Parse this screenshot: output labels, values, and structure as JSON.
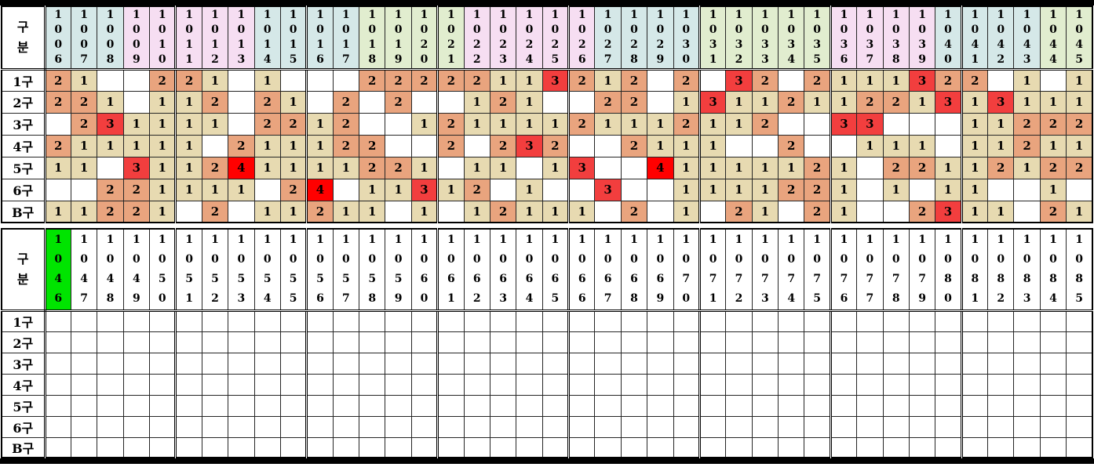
{
  "colors": {
    "header_cyan": "#d5e8e8",
    "header_pink": "#f6def2",
    "header_green": "#e1edcf",
    "header_bright_green": "#00e400",
    "header_white": "#ffffff",
    "value_1_bg": "#e7dab1",
    "value_2_bg": "#e9a47e",
    "value_3_bg": "#f23e3e",
    "value_4_bg": "#ff0000",
    "blank_bg": "#ffffff",
    "grid_line": "#262626"
  },
  "upper_table": {
    "corner_label": "구분",
    "corner_label_lines": [
      "구",
      "분"
    ],
    "row_labels": [
      "1구",
      "2구",
      "3구",
      "4구",
      "5구",
      "6구",
      "B구"
    ],
    "column_ids": [
      "1006",
      "1007",
      "1008",
      "1009",
      "1010",
      "1011",
      "1012",
      "1013",
      "1014",
      "1015",
      "1016",
      "1017",
      "1018",
      "1019",
      "1020",
      "1021",
      "1022",
      "1023",
      "1024",
      "1025",
      "1026",
      "1027",
      "1028",
      "1029",
      "1030",
      "1031",
      "1032",
      "1033",
      "1034",
      "1035",
      "1036",
      "1037",
      "1038",
      "1039",
      "1040",
      "1041",
      "1042",
      "1043",
      "1044",
      "1045"
    ],
    "column_color_keys": [
      "cyan",
      "cyan",
      "cyan",
      "pink",
      "pink",
      "pink",
      "pink",
      "pink",
      "cyan",
      "cyan",
      "cyan",
      "cyan",
      "green",
      "green",
      "green",
      "green",
      "pink",
      "pink",
      "pink",
      "pink",
      "pink",
      "cyan",
      "cyan",
      "cyan",
      "cyan",
      "green",
      "green",
      "green",
      "green",
      "green",
      "pink",
      "pink",
      "pink",
      "pink",
      "cyan",
      "cyan",
      "cyan",
      "cyan",
      "green",
      "green"
    ],
    "cell_values": [
      [
        2,
        1,
        null,
        null,
        2,
        2,
        1,
        null,
        1,
        null,
        null,
        null,
        2,
        2,
        2,
        2,
        2,
        1,
        1,
        3,
        2,
        1,
        2,
        null,
        2,
        null,
        3,
        2,
        null,
        2,
        1,
        1,
        1,
        3,
        2,
        2,
        null,
        1,
        null,
        1
      ],
      [
        2,
        2,
        1,
        null,
        1,
        1,
        2,
        null,
        2,
        1,
        null,
        2,
        null,
        2,
        null,
        null,
        1,
        2,
        1,
        null,
        null,
        2,
        2,
        null,
        1,
        3,
        1,
        1,
        2,
        1,
        1,
        2,
        2,
        1,
        3,
        1,
        3,
        1,
        1,
        1
      ],
      [
        null,
        2,
        3,
        1,
        1,
        1,
        1,
        null,
        2,
        2,
        1,
        2,
        null,
        null,
        1,
        2,
        1,
        1,
        1,
        1,
        2,
        1,
        1,
        1,
        2,
        1,
        1,
        2,
        null,
        null,
        3,
        3,
        null,
        null,
        null,
        1,
        1,
        2,
        2,
        2
      ],
      [
        2,
        1,
        1,
        1,
        1,
        1,
        null,
        2,
        1,
        1,
        1,
        2,
        2,
        null,
        null,
        2,
        null,
        2,
        3,
        2,
        null,
        null,
        2,
        1,
        1,
        1,
        null,
        null,
        2,
        null,
        null,
        1,
        1,
        1,
        null,
        1,
        1,
        2,
        1,
        1
      ],
      [
        1,
        1,
        null,
        3,
        1,
        1,
        2,
        4,
        1,
        1,
        1,
        1,
        2,
        2,
        1,
        null,
        1,
        1,
        null,
        1,
        3,
        null,
        null,
        4,
        1,
        1,
        1,
        1,
        1,
        2,
        1,
        null,
        2,
        2,
        1,
        1,
        2,
        1,
        2,
        2
      ],
      [
        null,
        null,
        2,
        2,
        1,
        1,
        1,
        1,
        null,
        2,
        4,
        null,
        1,
        1,
        3,
        1,
        2,
        null,
        1,
        null,
        null,
        3,
        null,
        null,
        1,
        1,
        1,
        1,
        2,
        2,
        1,
        null,
        1,
        null,
        1,
        1,
        null,
        null,
        1,
        null
      ],
      [
        1,
        1,
        2,
        2,
        1,
        null,
        2,
        null,
        1,
        1,
        2,
        1,
        1,
        null,
        1,
        null,
        1,
        2,
        1,
        1,
        1,
        null,
        2,
        null,
        1,
        null,
        2,
        1,
        null,
        2,
        1,
        null,
        null,
        2,
        3,
        1,
        1,
        null,
        2,
        1
      ]
    ]
  },
  "lower_table": {
    "corner_label": "구분",
    "corner_label_lines": [
      "구",
      "분"
    ],
    "row_labels": [
      "1구",
      "2구",
      "3구",
      "4구",
      "5구",
      "6구",
      "B구"
    ],
    "column_ids": [
      "1046",
      "1047",
      "1048",
      "1049",
      "1050",
      "1051",
      "1052",
      "1053",
      "1054",
      "1055",
      "1056",
      "1057",
      "1058",
      "1059",
      "1060",
      "1061",
      "1062",
      "1063",
      "1064",
      "1065",
      "1066",
      "1067",
      "1068",
      "1069",
      "1070",
      "1071",
      "1072",
      "1073",
      "1074",
      "1075",
      "1076",
      "1077",
      "1078",
      "1079",
      "1080",
      "1081",
      "1082",
      "1083",
      "1084",
      "1085"
    ],
    "column_color_keys": [
      "bright_green",
      "white",
      "white",
      "white",
      "white",
      "white",
      "white",
      "white",
      "white",
      "white",
      "white",
      "white",
      "white",
      "white",
      "white",
      "white",
      "white",
      "white",
      "white",
      "white",
      "white",
      "white",
      "white",
      "white",
      "white",
      "white",
      "white",
      "white",
      "white",
      "white",
      "white",
      "white",
      "white",
      "white",
      "white",
      "white",
      "white",
      "white",
      "white",
      "white"
    ],
    "cell_values": [
      [],
      [],
      [],
      [],
      [],
      [],
      []
    ]
  }
}
